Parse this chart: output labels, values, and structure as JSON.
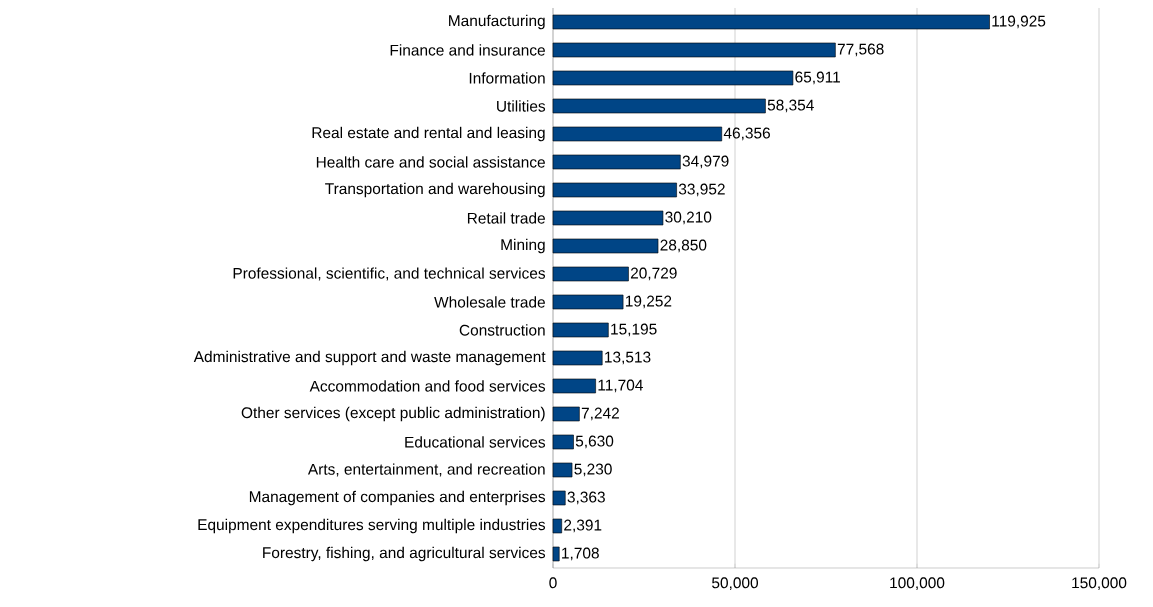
{
  "chart_data": {
    "type": "bar",
    "orientation": "horizontal",
    "color": "#004586",
    "grid": "x",
    "categories": [
      "Manufacturing",
      "Finance and insurance",
      "Information",
      "Utilities",
      "Real estate and rental and leasing",
      "Health care and social assistance",
      "Transportation and warehousing",
      "Retail trade",
      "Mining",
      "Professional, scientific, and technical services",
      "Wholesale trade",
      "Construction",
      "Administrative and support and waste management",
      "Accommodation and food services",
      "Other services (except public administration)",
      "Educational services",
      "Arts, entertainment, and recreation",
      "Management of companies and enterprises",
      "Equipment expenditures serving multiple industries",
      "Forestry, fishing, and agricultural services"
    ],
    "values": [
      119925,
      77568,
      65911,
      58354,
      46356,
      34979,
      33952,
      30210,
      28850,
      20729,
      19252,
      15195,
      13513,
      11704,
      7242,
      5630,
      5230,
      3363,
      2391,
      1708
    ],
    "value_labels": [
      "119,925",
      "77,568",
      "65,911",
      "58,354",
      "46,356",
      "34,979",
      "33,952",
      "30,210",
      "28,850",
      "20,729",
      "19,252",
      "15,195",
      "13,513",
      "11,704",
      "7,242",
      "5,630",
      "5,230",
      "3,363",
      "2,391",
      "1,708"
    ],
    "xlim": [
      0,
      150000
    ],
    "xticks": [
      0,
      {
        "value": 50000,
        "label": "50,000"
      },
      {
        "value": 100000,
        "label": "100,000"
      },
      {
        "value": 150000,
        "label": "150,000"
      }
    ]
  }
}
